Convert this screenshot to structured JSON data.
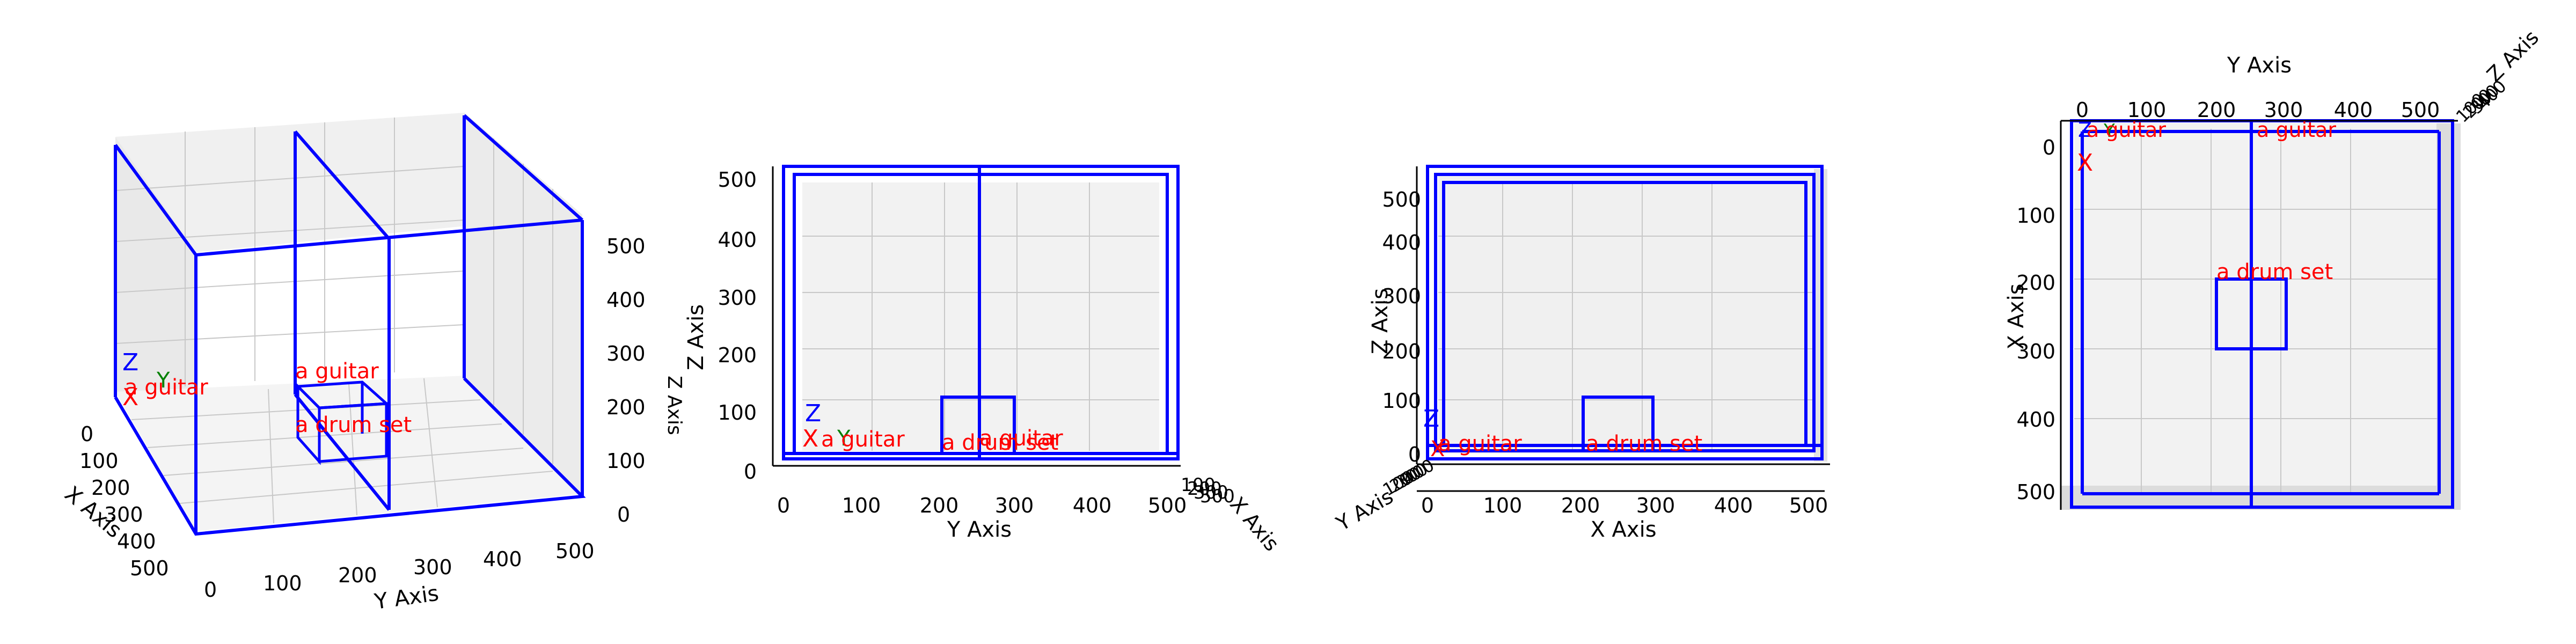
{
  "colors": {
    "box": "#0000ff",
    "object_label": "#ff0000",
    "x_marker": "#ff0000",
    "y_marker": "#008000",
    "z_marker": "#0000ff",
    "pane": "#f2f2f2",
    "grid": "#c8c8c8"
  },
  "axis_labels": {
    "x": "X Axis",
    "y": "Y Axis",
    "z": "Z Axis"
  },
  "objects": {
    "guitar": "a guitar",
    "drum_set": "a drum set"
  },
  "markers": {
    "x": "X",
    "y": "Y",
    "z": "Z"
  },
  "ticks": {
    "values_0_500": [
      "0",
      "100",
      "200",
      "300",
      "400",
      "500"
    ],
    "z_view": [
      "0",
      "100",
      "200",
      "300",
      "400",
      "500"
    ],
    "top_x_view": [
      "0",
      "100",
      "200",
      "300",
      "400",
      "500"
    ],
    "top_y_view": [
      "0",
      "100",
      "200",
      "300",
      "400",
      "500"
    ],
    "front_side_y": [
      "0",
      "100",
      "200",
      "300",
      "400",
      "500"
    ]
  },
  "chart_data": {
    "type": "3d-box-views",
    "views": [
      "perspective",
      "front (Y-Z)",
      "side (X-Z)",
      "top (Y-X)"
    ],
    "axis_ranges": {
      "x": [
        0,
        500
      ],
      "y": [
        0,
        500
      ],
      "z": [
        0,
        500
      ]
    },
    "objects": [
      {
        "name": "a guitar",
        "position": [
          0,
          0,
          0
        ]
      },
      {
        "name": "a drum set",
        "y_range": [
          210,
          310
        ],
        "x_range": [
          210,
          310
        ],
        "z_range": [
          0,
          100
        ]
      }
    ],
    "grid": true
  }
}
